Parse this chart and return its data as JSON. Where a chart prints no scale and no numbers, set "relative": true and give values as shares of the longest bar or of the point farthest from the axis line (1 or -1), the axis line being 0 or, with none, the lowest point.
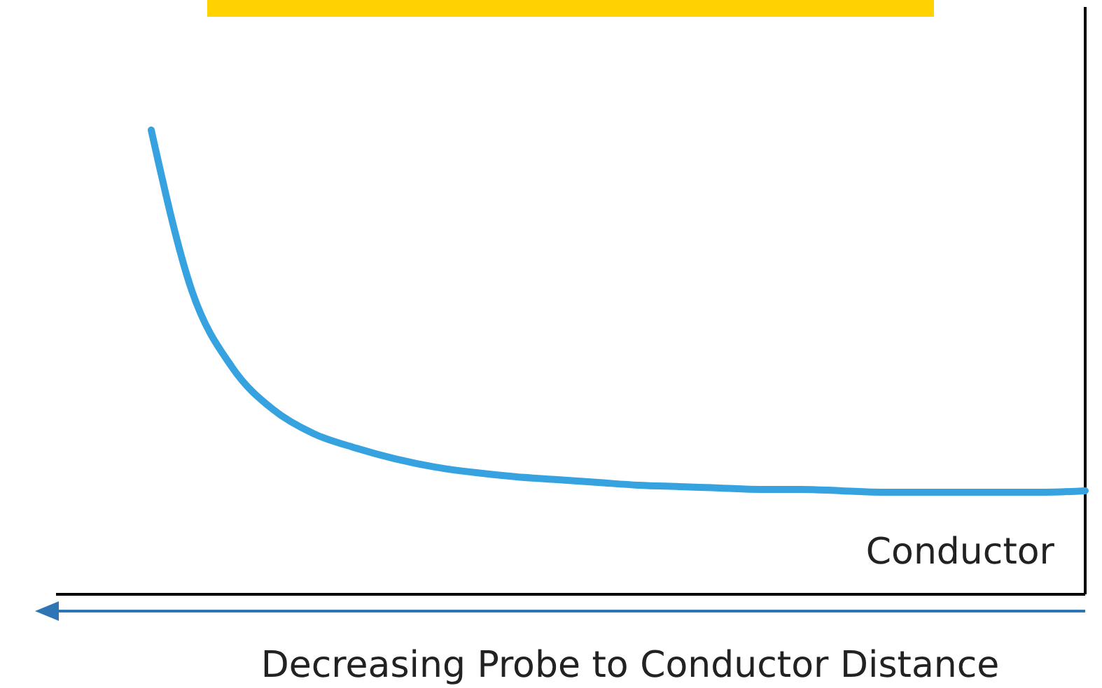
{
  "chart_data": {
    "type": "line",
    "relative": true,
    "xlabel": "Decreasing Probe to Conductor Distance",
    "annotations": [
      "Conductor"
    ],
    "categories": [
      null,
      null,
      null,
      null,
      null,
      null,
      null,
      null,
      null,
      null,
      null,
      null,
      null,
      null,
      null,
      null,
      null,
      null,
      null,
      null,
      null,
      null,
      null,
      null
    ],
    "series": [
      {
        "color": "#36a2e0",
        "values": [
          1.0,
          0.654,
          0.488,
          0.398,
          0.346,
          0.316,
          0.292,
          0.274,
          0.262,
          0.253,
          0.247,
          0.241,
          0.235,
          0.232,
          0.229,
          0.226,
          0.226,
          0.223,
          0.22,
          0.22,
          0.22,
          0.22,
          0.22,
          0.223
        ]
      }
    ]
  }
}
